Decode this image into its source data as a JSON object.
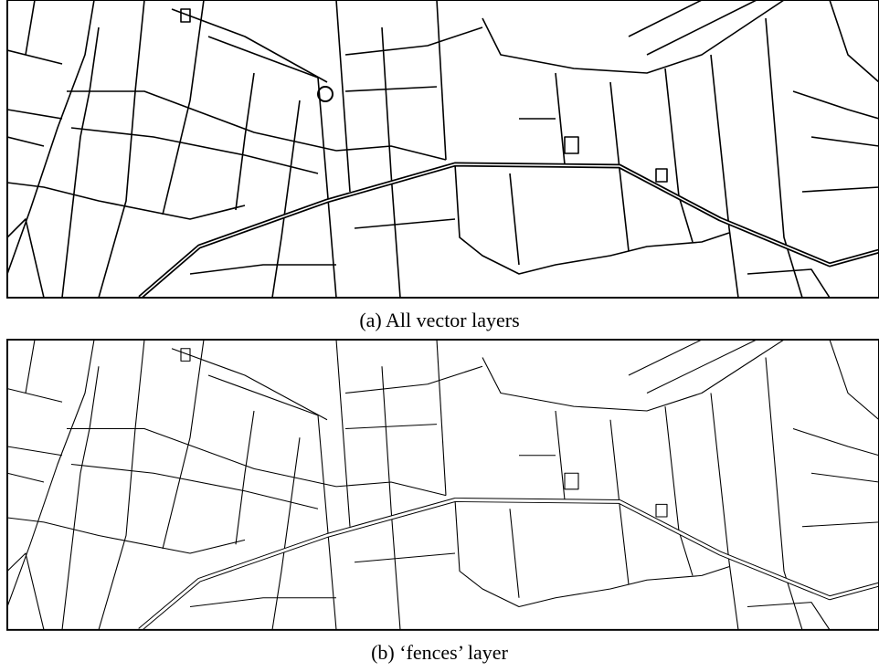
{
  "figure": {
    "panels": [
      {
        "caption": "(a) All vector layers"
      },
      {
        "caption": "(b) ‘fences’ layer"
      }
    ]
  }
}
